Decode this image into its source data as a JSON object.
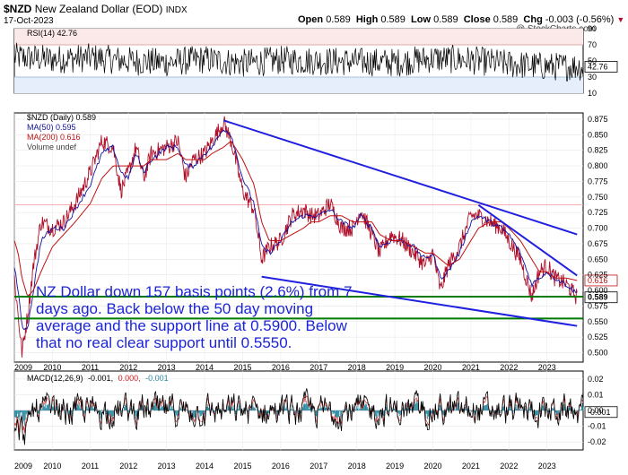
{
  "header": {
    "symbol": "$NZD",
    "name": "New Zealand Dollar (EOD)",
    "exchange": "INDX",
    "date": "17-Oct-2023",
    "open_label": "Open",
    "open": "0.589",
    "high_label": "High",
    "high": "0.589",
    "low_label": "Low",
    "low": "0.589",
    "close_label": "Close",
    "close": "0.589",
    "chg_label": "Chg",
    "chg": "-0.003 (-0.56%)",
    "watermark": "@ StockCharts.com"
  },
  "legend": {
    "rsi": "RSI(14) 42.76",
    "price": "$NZD (Daily) 0.589",
    "ma50": "MA(50) 0.595",
    "ma200": "MA(200) 0.616",
    "volume": "Volume undef",
    "macd_label": "MACD(12,26,9)",
    "macd_v1": "-0.001,",
    "macd_v2": "0.000,",
    "macd_v3": "-0.001"
  },
  "annotation": {
    "lines": [
      "NZ Dollar down 157 basis points (2.6%) from 7",
      "days ago. Back below the 50 day moving",
      "average and the support line at 0.5900. Below",
      "that no real clear support until 0.5550."
    ]
  },
  "colors": {
    "price": "#b0102a",
    "ma50": "#1010a0",
    "ma200": "#c01010",
    "trend": "#2020e0",
    "support": "#007a00",
    "annotation": "#1c24d8",
    "rsi": "#000000",
    "macd": "#000000",
    "macd_signal": "#d02020",
    "macd_hist": "#2a8aa0",
    "rsi_band_upper": "#e07070",
    "rsi_band_lower": "#60a0e0"
  },
  "chart_data": [
    {
      "type": "line",
      "panel": "RSI",
      "title": "RSI(14) 42.76",
      "ylim": [
        10,
        90
      ],
      "y_ticks": [
        "90",
        "70",
        "50",
        "30",
        "10"
      ],
      "reference_lines": [
        70,
        30
      ],
      "last_value": "42.76",
      "x": [
        "2009",
        "2010",
        "2011",
        "2012",
        "2013",
        "2014",
        "2015",
        "2016",
        "2017",
        "2018",
        "2019",
        "2020",
        "2021",
        "2022",
        "2023"
      ],
      "values": [
        55,
        52,
        54,
        50,
        48,
        52,
        47,
        51,
        50,
        49,
        48,
        53,
        51,
        46,
        43
      ]
    },
    {
      "type": "line",
      "panel": "Price",
      "title": "$NZD (Daily) 0.589",
      "ylim": [
        0.485,
        0.885
      ],
      "y_ticks": [
        "0.875",
        "0.850",
        "0.825",
        "0.800",
        "0.775",
        "0.750",
        "0.725",
        "0.700",
        "0.675",
        "0.650",
        "0.625",
        "0.600",
        "0.575",
        "0.550",
        "0.525",
        "0.500"
      ],
      "x_ticks": [
        "2009",
        "2010",
        "2011",
        "2012",
        "2013",
        "2014",
        "2015",
        "2016",
        "2017",
        "2018",
        "2019",
        "2020",
        "2021",
        "2022",
        "2023"
      ],
      "x": [
        2009.0,
        2009.1,
        2009.2,
        2009.35,
        2009.5,
        2009.7,
        2010.0,
        2010.3,
        2010.6,
        2011.0,
        2011.3,
        2011.6,
        2011.8,
        2012.0,
        2012.2,
        2012.4,
        2012.6,
        2013.0,
        2013.3,
        2013.5,
        2013.7,
        2014.0,
        2014.2,
        2014.5,
        2014.7,
        2015.0,
        2015.3,
        2015.5,
        2015.7,
        2016.0,
        2016.3,
        2016.6,
        2016.8,
        2017.0,
        2017.3,
        2017.6,
        2017.9,
        2018.1,
        2018.4,
        2018.6,
        2018.9,
        2019.2,
        2019.5,
        2019.8,
        2020.0,
        2020.2,
        2020.4,
        2020.7,
        2021.0,
        2021.2,
        2021.5,
        2021.8,
        2022.0,
        2022.3,
        2022.6,
        2022.8,
        2023.0,
        2023.2,
        2023.5,
        2023.79
      ],
      "series": [
        {
          "name": "$NZD (Daily) 0.589",
          "values": [
            0.62,
            0.56,
            0.5,
            0.56,
            0.64,
            0.71,
            0.7,
            0.71,
            0.74,
            0.79,
            0.84,
            0.83,
            0.76,
            0.79,
            0.83,
            0.78,
            0.82,
            0.83,
            0.84,
            0.78,
            0.81,
            0.82,
            0.84,
            0.87,
            0.84,
            0.76,
            0.73,
            0.65,
            0.67,
            0.68,
            0.72,
            0.73,
            0.72,
            0.72,
            0.74,
            0.7,
            0.7,
            0.73,
            0.69,
            0.66,
            0.69,
            0.68,
            0.66,
            0.64,
            0.66,
            0.6,
            0.64,
            0.67,
            0.72,
            0.72,
            0.71,
            0.7,
            0.68,
            0.65,
            0.59,
            0.63,
            0.64,
            0.62,
            0.61,
            0.589
          ]
        },
        {
          "name": "MA(50) 0.595",
          "values": [
            0.64,
            0.6,
            0.54,
            0.54,
            0.6,
            0.68,
            0.7,
            0.7,
            0.73,
            0.77,
            0.82,
            0.83,
            0.79,
            0.78,
            0.82,
            0.79,
            0.81,
            0.83,
            0.83,
            0.8,
            0.8,
            0.82,
            0.83,
            0.86,
            0.85,
            0.78,
            0.74,
            0.67,
            0.66,
            0.68,
            0.71,
            0.72,
            0.72,
            0.72,
            0.73,
            0.71,
            0.7,
            0.72,
            0.7,
            0.67,
            0.68,
            0.68,
            0.67,
            0.65,
            0.66,
            0.62,
            0.63,
            0.66,
            0.71,
            0.72,
            0.71,
            0.7,
            0.69,
            0.66,
            0.61,
            0.62,
            0.63,
            0.62,
            0.61,
            0.595
          ]
        },
        {
          "name": "MA(200) 0.616",
          "values": [
            0.68,
            0.66,
            0.62,
            0.59,
            0.6,
            0.63,
            0.67,
            0.69,
            0.71,
            0.74,
            0.78,
            0.8,
            0.8,
            0.8,
            0.8,
            0.8,
            0.81,
            0.81,
            0.82,
            0.81,
            0.81,
            0.81,
            0.82,
            0.83,
            0.84,
            0.81,
            0.77,
            0.71,
            0.68,
            0.68,
            0.69,
            0.7,
            0.71,
            0.71,
            0.72,
            0.72,
            0.71,
            0.71,
            0.71,
            0.69,
            0.68,
            0.68,
            0.67,
            0.66,
            0.66,
            0.65,
            0.64,
            0.65,
            0.68,
            0.7,
            0.71,
            0.71,
            0.7,
            0.68,
            0.65,
            0.63,
            0.63,
            0.62,
            0.62,
            0.616
          ]
        }
      ],
      "trendlines": [
        {
          "from": [
            2014.5,
            0.873
          ],
          "to": [
            2023.79,
            0.69
          ]
        },
        {
          "from": [
            2015.5,
            0.622
          ],
          "to": [
            2023.79,
            0.543
          ]
        },
        {
          "from": [
            2021.2,
            0.737
          ],
          "to": [
            2023.79,
            0.624
          ]
        }
      ],
      "support_lines": [
        0.59,
        0.555
      ],
      "last_value": "0.589",
      "ma200_last": "0.616"
    },
    {
      "type": "line",
      "panel": "MACD",
      "title": "MACD(12,26,9)",
      "ylim": [
        -0.025,
        0.025
      ],
      "y_ticks": [
        "0.02",
        "0.01",
        "0.00",
        "-0.01",
        "-0.02"
      ],
      "x_ticks": [
        "2009",
        "2010",
        "2011",
        "2012",
        "2013",
        "2014",
        "2015",
        "2016",
        "2017",
        "2018",
        "2019",
        "2020",
        "2021",
        "2022",
        "2023"
      ],
      "series": [
        {
          "name": "MACD",
          "last": -0.001
        },
        {
          "name": "Signal",
          "last": 0.0
        },
        {
          "name": "Histogram",
          "last": -0.001
        }
      ],
      "last_value": "-0.001"
    }
  ]
}
